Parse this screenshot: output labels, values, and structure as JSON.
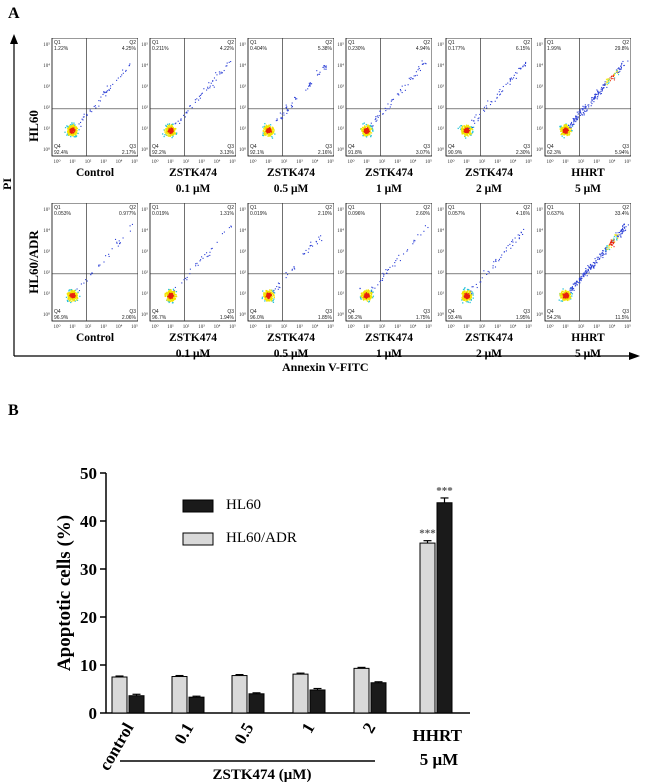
{
  "panel_a": {
    "letter": "A",
    "y_axis_label": "PI",
    "x_axis_label": "Annexin V-FITC",
    "rows": [
      {
        "label": "HL60",
        "plots": [
          {
            "quadrants": {
              "q1": "Q1",
              "q2": "Q2",
              "q3": "Q3",
              "q4": "Q4"
            },
            "ul": "1.22%",
            "ur": "4.25%",
            "ll": "92.4%",
            "lr": "2.17%",
            "line1": "Control",
            "line2": ""
          },
          {
            "quadrants": {
              "q1": "Q1",
              "q2": "Q2",
              "q3": "Q3",
              "q4": "Q4"
            },
            "ul": "0.211%",
            "ur": "4.22%",
            "ll": "92.2%",
            "lr": "3.13%",
            "line1": "ZSTK474",
            "line2": "0.1 μM"
          },
          {
            "quadrants": {
              "q1": "Q1",
              "q2": "Q2",
              "q3": "Q3",
              "q4": "Q4"
            },
            "ul": "0.404%",
            "ur": "5.38%",
            "ll": "92.1%",
            "lr": "2.16%",
            "line1": "ZSTK474",
            "line2": "0.5 μM"
          },
          {
            "quadrants": {
              "q1": "Q1",
              "q2": "Q2",
              "q3": "Q3",
              "q4": "Q4"
            },
            "ul": "0.230%",
            "ur": "4.94%",
            "ll": "91.8%",
            "lr": "3.07%",
            "line1": "ZSTK474",
            "line2": "1 μM"
          },
          {
            "quadrants": {
              "q1": "Q1",
              "q2": "Q2",
              "q3": "Q3",
              "q4": "Q4"
            },
            "ul": "0.177%",
            "ur": "6.15%",
            "ll": "90.9%",
            "lr": "2.30%",
            "line1": "ZSTK474",
            "line2": "2 μM"
          },
          {
            "quadrants": {
              "q1": "Q1",
              "q2": "Q2",
              "q3": "Q3",
              "q4": "Q4"
            },
            "ul": "1.99%",
            "ur": "29.8%",
            "ll": "62.3%",
            "lr": "5.94%",
            "line1": "HHRT",
            "line2": "5 μM"
          }
        ]
      },
      {
        "label": "HL60/ADR",
        "plots": [
          {
            "quadrants": {
              "q1": "Q1",
              "q2": "Q2",
              "q3": "Q3",
              "q4": "Q4"
            },
            "ul": "0.053%",
            "ur": "0.977%",
            "ll": "96.9%",
            "lr": "2.06%",
            "line1": "Control",
            "line2": ""
          },
          {
            "quadrants": {
              "q1": "Q1",
              "q2": "Q2",
              "q3": "Q3",
              "q4": "Q4"
            },
            "ul": "0.019%",
            "ur": "1.31%",
            "ll": "96.7%",
            "lr": "1.94%",
            "line1": "ZSTK474",
            "line2": "0.1 μM"
          },
          {
            "quadrants": {
              "q1": "Q1",
              "q2": "Q2",
              "q3": "Q3",
              "q4": "Q4"
            },
            "ul": "0.019%",
            "ur": "2.10%",
            "ll": "96.0%",
            "lr": "1.85%",
            "line1": "ZSTK474",
            "line2": "0.5 μM"
          },
          {
            "quadrants": {
              "q1": "Q1",
              "q2": "Q2",
              "q3": "Q3",
              "q4": "Q4"
            },
            "ul": "0.096%",
            "ur": "2.60%",
            "ll": "96.2%",
            "lr": "1.75%",
            "line1": "ZSTK474",
            "line2": "1 μM"
          },
          {
            "quadrants": {
              "q1": "Q1",
              "q2": "Q2",
              "q3": "Q3",
              "q4": "Q4"
            },
            "ul": "0.057%",
            "ur": "4.16%",
            "ll": "93.4%",
            "lr": "1.95%",
            "line1": "ZSTK474",
            "line2": "2 μM"
          },
          {
            "quadrants": {
              "q1": "Q1",
              "q2": "Q2",
              "q3": "Q3",
              "q4": "Q4"
            },
            "ul": "0.637%",
            "ur": "33.4%",
            "ll": "54.2%",
            "lr": "11.5%",
            "line1": "HHRT",
            "line2": "5 μM"
          }
        ]
      }
    ],
    "colors": {
      "dot": "#2b3fd6",
      "dense_low": "#27c3d9",
      "dense_mid": "#f2e400",
      "dense_high": "#e8220e"
    }
  },
  "chart_data": {
    "letter": "B",
    "type": "bar",
    "ylabel": "Apoptotic cells (%)",
    "xlabel": "",
    "ylim": [
      0,
      50
    ],
    "yticks": [
      0,
      10,
      20,
      30,
      40,
      50
    ],
    "categories": [
      "control",
      "0.1",
      "0.5",
      "1",
      "2",
      "HHRT"
    ],
    "hhrt_sublabel": "5 μM",
    "group_label": "ZSTK474 (μM)",
    "series": [
      {
        "name": "HL60",
        "color": "#1a1a1a",
        "values": [
          3.6,
          3.3,
          4.0,
          4.8,
          6.3,
          43.8
        ],
        "errors": [
          0.3,
          0.2,
          0.2,
          0.3,
          0.2,
          1.0
        ]
      },
      {
        "name": "HL60/ADR",
        "color": "#d9d9d9",
        "values": [
          7.5,
          7.6,
          7.8,
          8.1,
          9.3,
          35.4
        ],
        "errors": [
          0.2,
          0.2,
          0.2,
          0.2,
          0.2,
          0.5
        ]
      }
    ],
    "legend_order": [
      "HL60",
      "HL60/ADR"
    ],
    "significance": [
      {
        "category": "HHRT",
        "series": "HL60/ADR",
        "marker": "***"
      },
      {
        "category": "HHRT",
        "series": "HL60",
        "marker": "***"
      }
    ]
  }
}
